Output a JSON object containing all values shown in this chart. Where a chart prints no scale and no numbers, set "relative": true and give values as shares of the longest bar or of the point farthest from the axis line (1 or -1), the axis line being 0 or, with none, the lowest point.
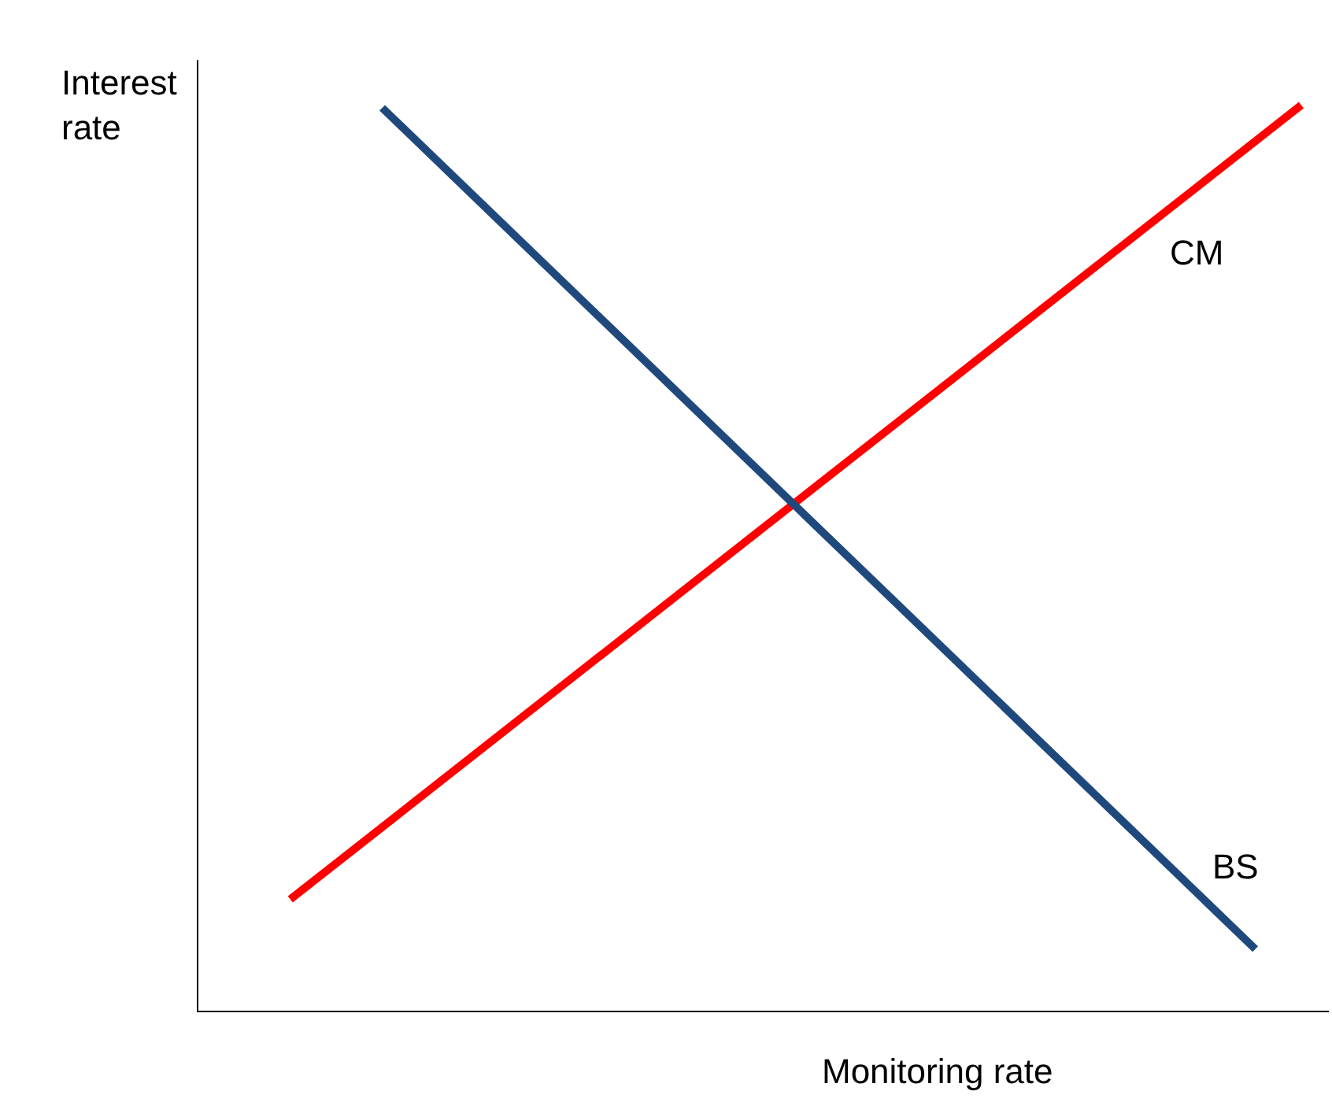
{
  "chart_data": {
    "type": "line",
    "relative": true,
    "xlabel": "Monitoring rate",
    "ylabel": "Interest rate",
    "legend": false,
    "marker": "none",
    "line_style": "solid",
    "categories": [
      null,
      null,
      null,
      null,
      null,
      null,
      null,
      null,
      null,
      null,
      null,
      null,
      null,
      null,
      null,
      null,
      null,
      null,
      null,
      null,
      null,
      null,
      null,
      null,
      null
    ],
    "series": [
      {
        "name": "CM",
        "color": "#ff0000",
        "values": [
          null,
          null,
          0.123,
          null,
          null,
          null,
          null,
          null,
          null,
          null,
          null,
          null,
          null,
          null,
          null,
          null,
          null,
          null,
          null,
          null,
          null,
          null,
          null,
          null,
          1
        ]
      },
      {
        "name": "BS",
        "color": "#1f497d",
        "values": [
          null,
          null,
          null,
          null,
          0.997,
          null,
          null,
          null,
          null,
          null,
          null,
          null,
          null,
          null,
          null,
          null,
          null,
          null,
          null,
          null,
          null,
          null,
          null,
          0.068,
          null
        ]
      }
    ]
  }
}
